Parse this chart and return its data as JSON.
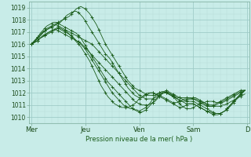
{
  "bg_color": "#c8ece8",
  "grid_color_major": "#a0ccc8",
  "grid_color_minor": "#b8ddd8",
  "line_color": "#1a5c1a",
  "marker_color": "#1a5c1a",
  "ylabel_text": "Pression niveau de la mer( hPa )",
  "ylim": [
    1009.5,
    1019.5
  ],
  "yticks": [
    1010,
    1011,
    1012,
    1013,
    1014,
    1015,
    1016,
    1017,
    1018,
    1019
  ],
  "day_labels": [
    "Mer",
    "Jeu",
    "Ven",
    "Sam",
    "D"
  ],
  "day_positions": [
    0,
    24,
    48,
    72,
    96
  ],
  "xlim": [
    -1,
    97
  ],
  "series": [
    [
      1016.0,
      1016.1,
      1016.2,
      1016.3,
      1016.5,
      1016.6,
      1016.7,
      1016.8,
      1016.9,
      1017.0,
      1017.1,
      1017.2,
      1017.3,
      1017.2,
      1017.1,
      1017.0,
      1016.9,
      1016.8,
      1016.7,
      1016.5,
      1016.3,
      1016.2,
      1016.0,
      1015.8,
      1015.6,
      1015.3,
      1015.0,
      1014.7,
      1014.4,
      1014.1,
      1013.8,
      1013.5,
      1013.2,
      1012.9,
      1012.6,
      1012.3,
      1012.0,
      1011.8,
      1011.6,
      1011.4,
      1011.2,
      1011.0,
      1010.9,
      1010.8,
      1010.7,
      1010.7,
      1010.6,
      1010.6,
      1010.5,
      1010.6,
      1010.7,
      1010.8,
      1011.0,
      1011.2,
      1011.5,
      1011.7,
      1011.9,
      1012.0,
      1012.1,
      1012.1,
      1012.0,
      1011.9,
      1011.8,
      1011.7,
      1011.6,
      1011.5,
      1011.4,
      1011.3,
      1011.3,
      1011.4,
      1011.5,
      1011.5,
      1011.6,
      1011.6,
      1011.5,
      1011.4,
      1011.3,
      1011.2,
      1011.1,
      1011.0,
      1011.0,
      1011.0,
      1011.1,
      1011.2,
      1011.3,
      1011.4,
      1011.5,
      1011.6,
      1011.7,
      1011.8,
      1011.9,
      1012.0,
      1012.1,
      1012.2,
      1012.2,
      1012.2
    ],
    [
      1016.0,
      1016.1,
      1016.2,
      1016.3,
      1016.5,
      1016.7,
      1016.8,
      1016.9,
      1017.0,
      1017.1,
      1017.2,
      1017.3,
      1017.4,
      1017.3,
      1017.2,
      1017.1,
      1017.0,
      1016.8,
      1016.6,
      1016.4,
      1016.2,
      1016.0,
      1015.8,
      1015.5,
      1015.2,
      1014.9,
      1014.6,
      1014.2,
      1013.8,
      1013.4,
      1013.0,
      1012.6,
      1012.3,
      1012.0,
      1011.7,
      1011.5,
      1011.3,
      1011.1,
      1011.0,
      1010.9,
      1010.8,
      1010.8,
      1010.8,
      1010.8,
      1010.9,
      1011.0,
      1011.1,
      1011.3,
      1011.5,
      1011.6,
      1011.8,
      1011.9,
      1012.0,
      1012.0,
      1012.0,
      1011.9,
      1011.9,
      1011.8,
      1011.7,
      1011.6,
      1011.5,
      1011.4,
      1011.3,
      1011.2,
      1011.2,
      1011.2,
      1011.3,
      1011.4,
      1011.5,
      1011.5,
      1011.5,
      1011.5,
      1011.5,
      1011.5,
      1011.4,
      1011.3,
      1011.2,
      1011.1,
      1011.0,
      1010.9,
      1010.9,
      1010.9,
      1011.0,
      1011.1,
      1011.2,
      1011.3,
      1011.4,
      1011.5,
      1011.6,
      1011.7,
      1011.8,
      1011.9,
      1012.0,
      1012.1,
      1012.2,
      1012.2
    ],
    [
      1016.0,
      1016.2,
      1016.4,
      1016.6,
      1016.8,
      1017.0,
      1017.1,
      1017.2,
      1017.3,
      1017.4,
      1017.5,
      1017.6,
      1017.7,
      1017.8,
      1018.0,
      1018.2,
      1018.4,
      1018.5,
      1018.6,
      1018.7,
      1018.7,
      1018.6,
      1018.4,
      1018.2,
      1017.9,
      1017.6,
      1017.3,
      1017.0,
      1016.7,
      1016.4,
      1016.1,
      1015.8,
      1015.5,
      1015.2,
      1015.0,
      1014.8,
      1014.5,
      1014.2,
      1013.9,
      1013.6,
      1013.3,
      1013.0,
      1012.7,
      1012.4,
      1012.2,
      1012.0,
      1011.8,
      1011.7,
      1011.6,
      1011.6,
      1011.7,
      1011.8,
      1011.9,
      1012.0,
      1012.0,
      1011.9,
      1011.8,
      1011.7,
      1011.6,
      1011.5,
      1011.4,
      1011.3,
      1011.2,
      1011.1,
      1011.0,
      1010.9,
      1010.8,
      1010.8,
      1010.9,
      1011.0,
      1011.1,
      1011.1,
      1011.1,
      1011.0,
      1010.9,
      1010.8,
      1010.7,
      1010.6,
      1010.5,
      1010.4,
      1010.3,
      1010.2,
      1010.2,
      1010.2,
      1010.3,
      1010.4,
      1010.5,
      1010.7,
      1010.9,
      1011.1,
      1011.3,
      1011.5,
      1011.7,
      1011.9,
      1012.1,
      1012.2
    ],
    [
      1016.0,
      1016.1,
      1016.3,
      1016.5,
      1016.7,
      1016.9,
      1017.1,
      1017.3,
      1017.4,
      1017.5,
      1017.6,
      1017.7,
      1017.8,
      1017.9,
      1018.0,
      1018.1,
      1018.2,
      1018.3,
      1018.5,
      1018.7,
      1018.9,
      1019.0,
      1019.1,
      1019.0,
      1018.9,
      1018.7,
      1018.5,
      1018.2,
      1017.9,
      1017.6,
      1017.2,
      1016.8,
      1016.4,
      1016.0,
      1015.7,
      1015.4,
      1015.1,
      1014.8,
      1014.5,
      1014.2,
      1013.9,
      1013.6,
      1013.3,
      1013.0,
      1012.8,
      1012.6,
      1012.4,
      1012.3,
      1012.2,
      1012.1,
      1012.0,
      1011.9,
      1011.8,
      1011.8,
      1011.8,
      1011.8,
      1011.9,
      1012.0,
      1012.0,
      1012.0,
      1012.0,
      1011.9,
      1011.8,
      1011.7,
      1011.6,
      1011.5,
      1011.4,
      1011.3,
      1011.2,
      1011.1,
      1011.1,
      1011.1,
      1011.1,
      1011.0,
      1010.9,
      1010.8,
      1010.7,
      1010.6,
      1010.5,
      1010.5,
      1010.4,
      1010.3,
      1010.3,
      1010.3,
      1010.3,
      1010.4,
      1010.5,
      1010.7,
      1010.9,
      1011.1,
      1011.3,
      1011.5,
      1011.7,
      1011.9,
      1012.1,
      1012.2
    ],
    [
      1016.0,
      1016.1,
      1016.3,
      1016.5,
      1016.7,
      1016.9,
      1017.1,
      1017.2,
      1017.3,
      1017.4,
      1017.5,
      1017.6,
      1017.5,
      1017.4,
      1017.3,
      1017.2,
      1017.1,
      1017.0,
      1016.9,
      1016.8,
      1016.7,
      1016.6,
      1016.5,
      1016.4,
      1016.3,
      1016.2,
      1016.1,
      1016.0,
      1015.8,
      1015.6,
      1015.4,
      1015.2,
      1015.0,
      1014.8,
      1014.6,
      1014.4,
      1014.2,
      1014.0,
      1013.8,
      1013.6,
      1013.4,
      1013.2,
      1013.0,
      1012.8,
      1012.6,
      1012.4,
      1012.2,
      1012.0,
      1011.8,
      1011.7,
      1011.6,
      1011.5,
      1011.5,
      1011.5,
      1011.5,
      1011.6,
      1011.7,
      1011.8,
      1011.9,
      1012.0,
      1012.1,
      1012.0,
      1011.9,
      1011.8,
      1011.7,
      1011.6,
      1011.6,
      1011.6,
      1011.6,
      1011.6,
      1011.6,
      1011.6,
      1011.5,
      1011.4,
      1011.3,
      1011.2,
      1011.1,
      1011.0,
      1010.9,
      1010.9,
      1010.9,
      1010.9,
      1010.9,
      1010.9,
      1010.9,
      1011.0,
      1011.0,
      1011.1,
      1011.2,
      1011.3,
      1011.4,
      1011.5,
      1011.6,
      1011.7,
      1011.8,
      1011.9
    ],
    [
      1016.0,
      1016.1,
      1016.2,
      1016.3,
      1016.5,
      1016.6,
      1016.7,
      1016.9,
      1017.0,
      1017.1,
      1017.2,
      1017.2,
      1017.1,
      1017.0,
      1016.9,
      1016.8,
      1016.7,
      1016.6,
      1016.5,
      1016.4,
      1016.3,
      1016.2,
      1016.1,
      1015.9,
      1015.7,
      1015.5,
      1015.3,
      1015.1,
      1014.9,
      1014.7,
      1014.5,
      1014.3,
      1014.1,
      1013.9,
      1013.7,
      1013.5,
      1013.3,
      1013.1,
      1012.9,
      1012.7,
      1012.5,
      1012.3,
      1012.1,
      1011.9,
      1011.7,
      1011.5,
      1011.3,
      1011.2,
      1011.1,
      1011.0,
      1011.0,
      1011.0,
      1011.0,
      1011.1,
      1011.2,
      1011.3,
      1011.5,
      1011.7,
      1011.9,
      1012.0,
      1012.1,
      1012.0,
      1011.9,
      1011.7,
      1011.5,
      1011.3,
      1011.1,
      1010.9,
      1010.8,
      1010.7,
      1010.7,
      1010.7,
      1010.8,
      1010.9,
      1011.0,
      1011.1,
      1011.2,
      1011.2,
      1011.3,
      1011.3,
      1011.3,
      1011.3,
      1011.2,
      1011.2,
      1011.2,
      1011.2,
      1011.3,
      1011.4,
      1011.5,
      1011.6,
      1011.7,
      1011.8,
      1011.9,
      1012.0,
      1012.1,
      1012.2
    ],
    [
      1016.0,
      1016.2,
      1016.4,
      1016.6,
      1016.9,
      1017.1,
      1017.3,
      1017.5,
      1017.6,
      1017.7,
      1017.8,
      1017.8,
      1017.7,
      1017.6,
      1017.5,
      1017.4,
      1017.3,
      1017.2,
      1017.1,
      1017.0,
      1016.9,
      1016.7,
      1016.5,
      1016.2,
      1015.9,
      1015.6,
      1015.3,
      1015.0,
      1014.7,
      1014.4,
      1014.1,
      1013.8,
      1013.5,
      1013.2,
      1012.9,
      1012.7,
      1012.5,
      1012.3,
      1012.1,
      1011.9,
      1011.7,
      1011.5,
      1011.3,
      1011.1,
      1010.9,
      1010.7,
      1010.6,
      1010.5,
      1010.4,
      1010.4,
      1010.5,
      1010.6,
      1010.8,
      1011.0,
      1011.2,
      1011.4,
      1011.6,
      1011.8,
      1012.0,
      1012.1,
      1012.2,
      1012.1,
      1012.0,
      1011.9,
      1011.8,
      1011.7,
      1011.6,
      1011.5,
      1011.4,
      1011.3,
      1011.3,
      1011.3,
      1011.3,
      1011.2,
      1011.1,
      1011.0,
      1010.9,
      1010.8,
      1010.7,
      1010.6,
      1010.5,
      1010.4,
      1010.3,
      1010.3,
      1010.3,
      1010.4,
      1010.5,
      1010.6,
      1010.8,
      1011.0,
      1011.2,
      1011.4,
      1011.6,
      1011.8,
      1012.0,
      1012.2
    ]
  ]
}
